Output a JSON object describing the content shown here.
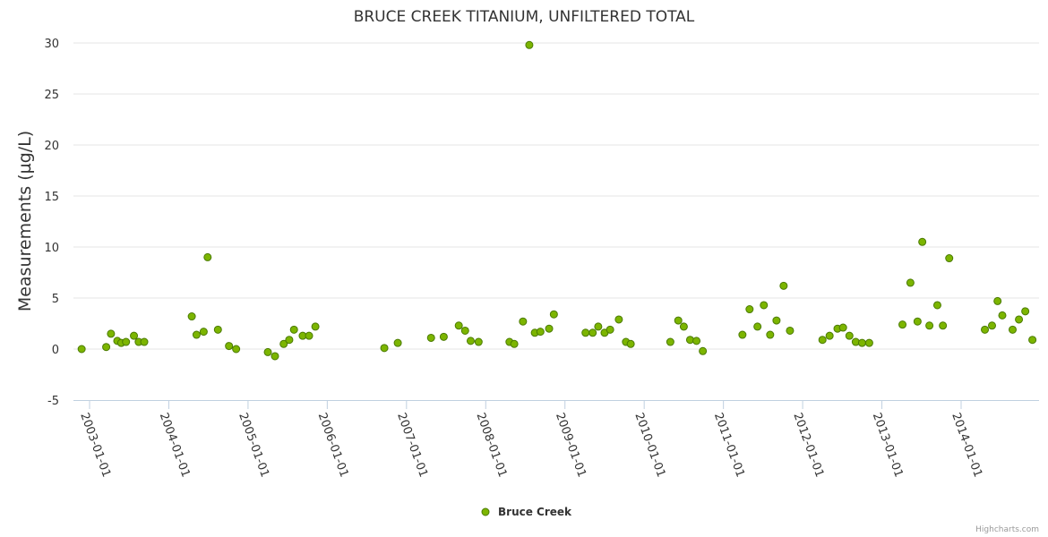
{
  "chart_data": {
    "type": "scatter",
    "title": "BRUCE CREEK TITANIUM, UNFILTERED TOTAL",
    "ylabel": "Measurements (µg/L)",
    "xlabel": "",
    "ylim": [
      -5,
      30
    ],
    "yticks": [
      -5,
      0,
      5,
      10,
      15,
      20,
      25,
      30
    ],
    "xlim": [
      2002.9,
      2015.0
    ],
    "xticks": [
      {
        "label": "2003-01-01",
        "x": 2003.0
      },
      {
        "label": "2004-01-01",
        "x": 2004.0
      },
      {
        "label": "2005-01-01",
        "x": 2005.0
      },
      {
        "label": "2006-01-01",
        "x": 2006.0
      },
      {
        "label": "2007-01-01",
        "x": 2007.0
      },
      {
        "label": "2008-01-01",
        "x": 2008.0
      },
      {
        "label": "2009-01-01",
        "x": 2009.0
      },
      {
        "label": "2010-01-01",
        "x": 2010.0
      },
      {
        "label": "2011-01-01",
        "x": 2011.0
      },
      {
        "label": "2012-01-01",
        "x": 2012.0
      },
      {
        "label": "2013-01-01",
        "x": 2013.0
      },
      {
        "label": "2014-01-01",
        "x": 2014.0
      }
    ],
    "legend": "bottom-center",
    "series": [
      {
        "name": "Bruce Creek",
        "color": "#7cb500",
        "edge_color": "#4a7a00",
        "points": [
          [
            2002.9,
            0.0
          ],
          [
            2003.21,
            0.2
          ],
          [
            2003.27,
            1.5
          ],
          [
            2003.35,
            0.8
          ],
          [
            2003.4,
            0.6
          ],
          [
            2003.46,
            0.7
          ],
          [
            2003.56,
            1.3
          ],
          [
            2003.62,
            0.7
          ],
          [
            2003.69,
            0.7
          ],
          [
            2004.29,
            3.2
          ],
          [
            2004.35,
            1.4
          ],
          [
            2004.44,
            1.7
          ],
          [
            2004.49,
            9.0
          ],
          [
            2004.62,
            1.9
          ],
          [
            2004.76,
            0.3
          ],
          [
            2004.85,
            0.0
          ],
          [
            2005.25,
            -0.3
          ],
          [
            2005.34,
            -0.7
          ],
          [
            2005.45,
            0.5
          ],
          [
            2005.52,
            0.9
          ],
          [
            2005.58,
            1.9
          ],
          [
            2005.69,
            1.3
          ],
          [
            2005.77,
            1.3
          ],
          [
            2005.85,
            2.2
          ],
          [
            2006.72,
            0.1
          ],
          [
            2006.89,
            0.6
          ],
          [
            2007.31,
            1.1
          ],
          [
            2007.47,
            1.2
          ],
          [
            2007.66,
            2.3
          ],
          [
            2007.74,
            1.8
          ],
          [
            2007.81,
            0.8
          ],
          [
            2007.91,
            0.7
          ],
          [
            2008.3,
            0.7
          ],
          [
            2008.36,
            0.5
          ],
          [
            2008.47,
            2.7
          ],
          [
            2008.55,
            29.8
          ],
          [
            2008.62,
            1.6
          ],
          [
            2008.69,
            1.7
          ],
          [
            2008.8,
            2.0
          ],
          [
            2008.86,
            3.4
          ],
          [
            2009.26,
            1.6
          ],
          [
            2009.35,
            1.6
          ],
          [
            2009.42,
            2.2
          ],
          [
            2009.5,
            1.6
          ],
          [
            2009.57,
            1.9
          ],
          [
            2009.68,
            2.9
          ],
          [
            2009.77,
            0.7
          ],
          [
            2009.83,
            0.5
          ],
          [
            2010.33,
            0.7
          ],
          [
            2010.43,
            2.8
          ],
          [
            2010.5,
            2.2
          ],
          [
            2010.58,
            0.9
          ],
          [
            2010.66,
            0.8
          ],
          [
            2010.74,
            -0.2
          ],
          [
            2011.24,
            1.4
          ],
          [
            2011.33,
            3.9
          ],
          [
            2011.43,
            2.2
          ],
          [
            2011.51,
            4.3
          ],
          [
            2011.59,
            1.4
          ],
          [
            2011.67,
            2.8
          ],
          [
            2011.76,
            6.2
          ],
          [
            2011.84,
            1.8
          ],
          [
            2012.25,
            0.9
          ],
          [
            2012.34,
            1.3
          ],
          [
            2012.44,
            2.0
          ],
          [
            2012.51,
            2.1
          ],
          [
            2012.59,
            1.3
          ],
          [
            2012.67,
            0.7
          ],
          [
            2012.75,
            0.6
          ],
          [
            2012.84,
            0.6
          ],
          [
            2013.26,
            2.4
          ],
          [
            2013.36,
            6.5
          ],
          [
            2013.45,
            2.7
          ],
          [
            2013.51,
            10.5
          ],
          [
            2013.6,
            2.3
          ],
          [
            2013.7,
            4.3
          ],
          [
            2013.77,
            2.3
          ],
          [
            2013.85,
            8.9
          ],
          [
            2014.3,
            1.9
          ],
          [
            2014.39,
            2.3
          ],
          [
            2014.46,
            4.7
          ],
          [
            2014.52,
            3.3
          ],
          [
            2014.65,
            1.9
          ],
          [
            2014.73,
            2.9
          ],
          [
            2014.81,
            3.7
          ],
          [
            2014.9,
            0.9
          ]
        ]
      }
    ]
  },
  "credits": "Highcharts.com"
}
